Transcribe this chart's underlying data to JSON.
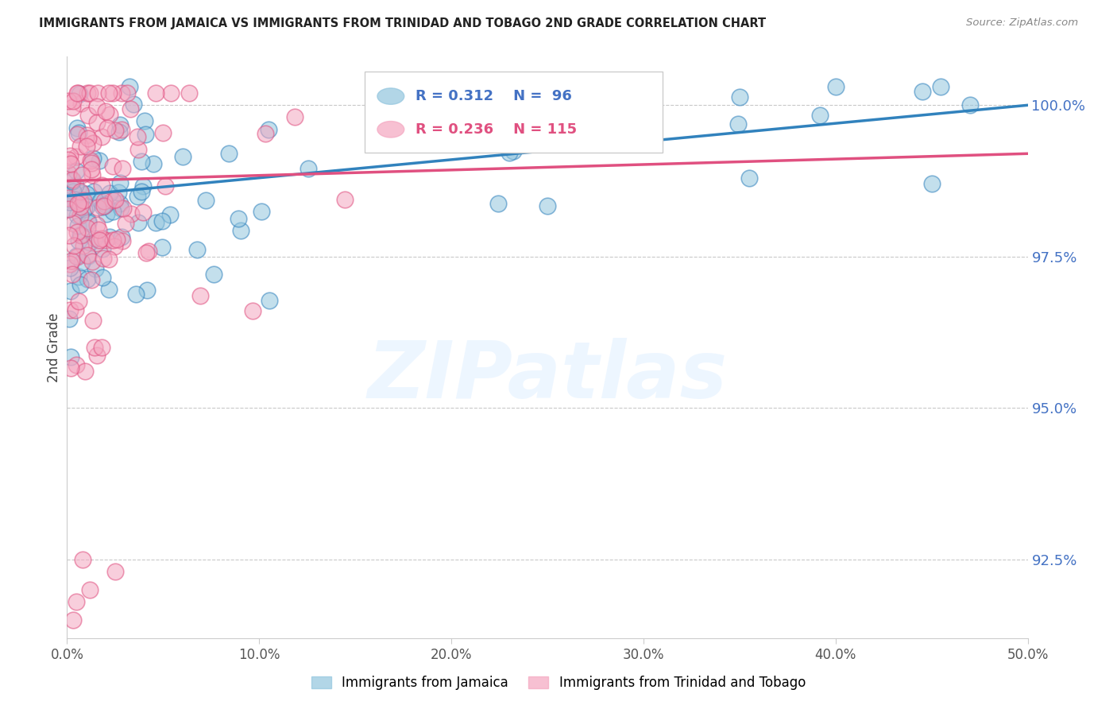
{
  "title": "IMMIGRANTS FROM JAMAICA VS IMMIGRANTS FROM TRINIDAD AND TOBAGO 2ND GRADE CORRELATION CHART",
  "source": "Source: ZipAtlas.com",
  "ylabel": "2nd Grade",
  "yticks": [
    92.5,
    95.0,
    97.5,
    100.0
  ],
  "ytick_labels": [
    "92.5%",
    "95.0%",
    "97.5%",
    "100.0%"
  ],
  "xmin": 0.0,
  "xmax": 50.0,
  "ymin": 91.2,
  "ymax": 100.8,
  "jamaica_color": "#92c5de",
  "tt_color": "#f4a6c0",
  "jamaica_line_color": "#3182bd",
  "tt_line_color": "#e05080",
  "legend_r_jamaica": "R = 0.312",
  "legend_n_jamaica": "N =  96",
  "legend_r_tt": "R = 0.236",
  "legend_n_tt": "N = 115",
  "legend_label_jamaica": "Immigrants from Jamaica",
  "legend_label_tt": "Immigrants from Trinidad and Tobago",
  "watermark": "ZIPatlas",
  "background_color": "#ffffff",
  "xtick_labels": [
    "0.0%",
    "10.0%",
    "20.0%",
    "30.0%",
    "40.0%",
    "50.0%"
  ],
  "xtick_positions": [
    0,
    10,
    20,
    30,
    40,
    50
  ]
}
